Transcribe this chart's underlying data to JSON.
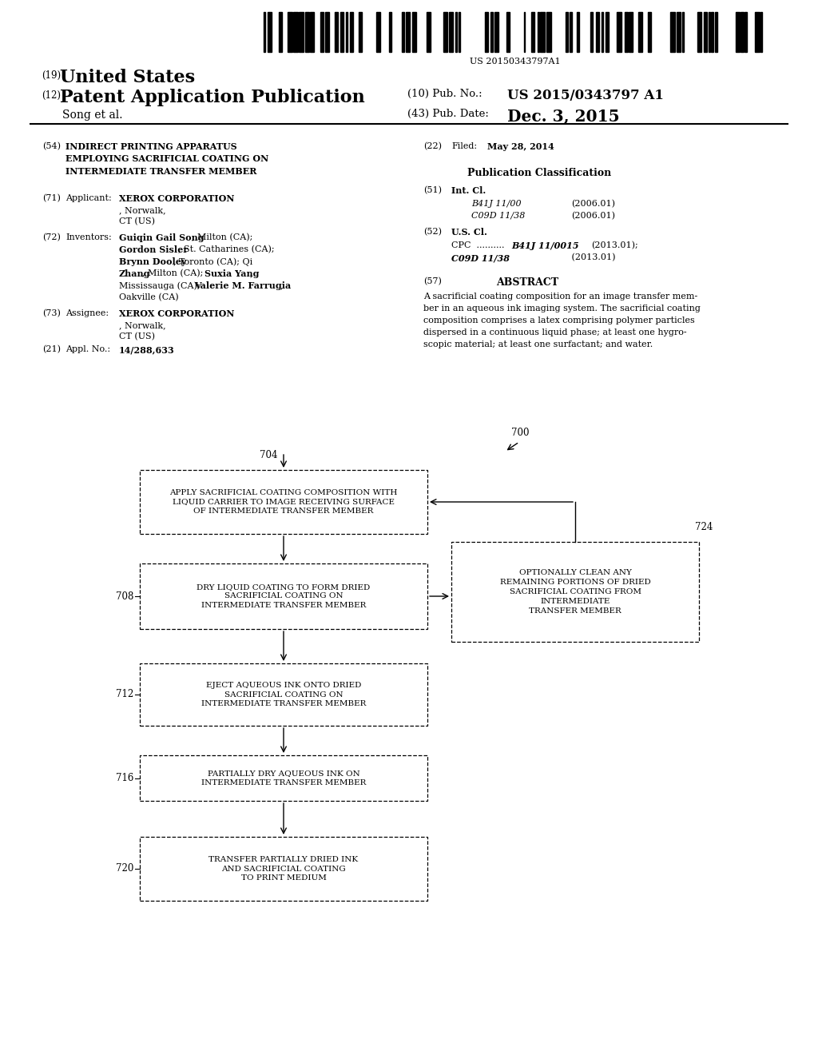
{
  "bg_color": "#ffffff",
  "barcode_text": "US 20150343797A1",
  "header": {
    "country_num": "(19)",
    "country": "United States",
    "type_num": "(12)",
    "type": "Patent Application Publication",
    "pub_num_label": "(10) Pub. No.:",
    "pub_num": "US 2015/0343797 A1",
    "author": "Song et al.",
    "date_label": "(43) Pub. Date:",
    "date": "Dec. 3, 2015"
  },
  "left_col": {
    "title_num": "(54)",
    "title_bold": "INDIRECT PRINTING APPARATUS\nEMPLOYING SACRIFICIAL COATING ON\nINTERMEDIATE TRANSFER MEMBER",
    "applicant_num": "(71)",
    "applicant_label": "Applicant:",
    "inventors_num": "(72)",
    "inventors_label": "Inventors:",
    "assignee_num": "(73)",
    "assignee_label": "Assignee:",
    "appl_num": "(21)",
    "appl_label": "Appl. No.:"
  },
  "right_col": {
    "filed_num": "(22)",
    "filed_label": "Filed:",
    "filed_date": "May 28, 2014",
    "pub_class_title": "Publication Classification",
    "int_cl_num": "(51)",
    "int_cl_label": "Int. Cl.",
    "us_cl_num": "(52)",
    "us_cl_label": "U.S. Cl.",
    "abstract_num": "(57)",
    "abstract_title": "ABSTRACT"
  },
  "flowchart": {
    "label_700": "700",
    "label_704": "704",
    "label_708": "708",
    "label_712": "712",
    "label_716": "716",
    "label_720": "720",
    "label_724": "724",
    "box_704_text": "APPLY SACRIFICIAL COATING COMPOSITION WITH\nLIQUID CARRIER TO IMAGE RECEIVING SURFACE\nOF INTERMEDIATE TRANSFER MEMBER",
    "box_708_text": "DRY LIQUID COATING TO FORM DRIED\nSACRIFICIAL COATING ON\nINTERMEDIATE TRANSFER MEMBER",
    "box_712_text": "EJECT AQUEOUS INK ONTO DRIED\nSACRIFICIAL COATING ON\nINTERMEDIATE TRANSFER MEMBER",
    "box_716_text": "PARTIALLY DRY AQUEOUS INK ON\nINTERMEDIATE TRANSFER MEMBER",
    "box_720_text": "TRANSFER PARTIALLY DRIED INK\nAND SACRIFICIAL COATING\nTO PRINT MEDIUM",
    "box_724_text": "OPTIONALLY CLEAN ANY\nREMAINING PORTIONS OF DRIED\nSACRIFICIAL COATING FROM\nINTERMEDIATE\nTRANSFER MEMBER"
  }
}
